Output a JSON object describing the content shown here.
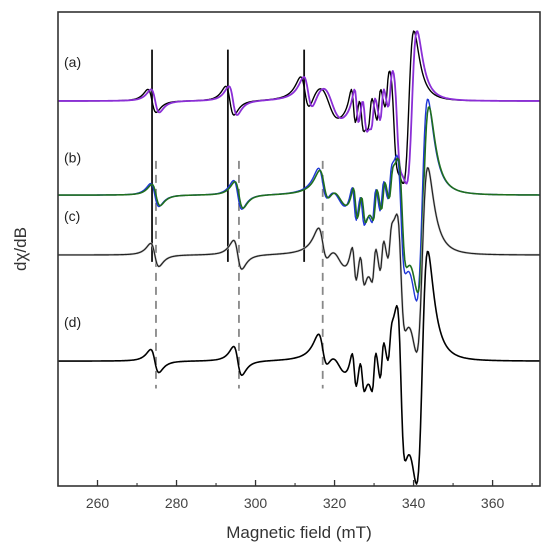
{
  "chart_data": {
    "type": "line",
    "title": "",
    "xlabel": "Magnetic field (mT)",
    "ylabel": "dχ/dB",
    "xlim": [
      250,
      372
    ],
    "x_ticks": [
      260,
      280,
      300,
      320,
      340,
      360
    ],
    "y_ticks_shown": false,
    "legend": "none",
    "trace_labels": [
      "(a)",
      "(b)",
      "(c)",
      "(d)"
    ],
    "traces": [
      {
        "label": "(a)",
        "baseline": 0.0,
        "series": [
          {
            "color": "#000000",
            "width": 1.4,
            "amp": 1.0,
            "field_shift": 0
          },
          {
            "color": "#8b2fd6",
            "width": 1.8,
            "amp": 1.0,
            "field_shift": 0.8
          }
        ],
        "features": [
          {
            "x": 273.8,
            "a": 0.08,
            "w": 1.8
          },
          {
            "x": 293.5,
            "a": 0.1,
            "w": 1.8
          },
          {
            "x": 312.5,
            "a": 0.12,
            "w": 2.0
          },
          {
            "x": 318.5,
            "a": 0.12,
            "w": 4.5
          },
          {
            "x": 324.8,
            "a": 0.14,
            "w": 1.0
          },
          {
            "x": 326.8,
            "a": 0.12,
            "w": 1.0
          },
          {
            "x": 329.0,
            "a": -0.1,
            "w": 0.9
          },
          {
            "x": 331.2,
            "a": -0.12,
            "w": 0.9
          },
          {
            "x": 333.3,
            "a": -0.1,
            "w": 0.9
          },
          {
            "x": 335.0,
            "a": 0.22,
            "w": 1.4
          },
          {
            "x": 338.8,
            "a": -0.5,
            "w": 2.2
          }
        ]
      },
      {
        "label": "(b)",
        "baseline": -0.55,
        "series": [
          {
            "color": "#1f36d6",
            "width": 1.4,
            "amp": 1.0,
            "field_shift": 0
          },
          {
            "color": "#1f6e1f",
            "width": 1.6,
            "amp": 0.92,
            "field_shift": 0.3
          }
        ],
        "features": [
          {
            "x": 274.5,
            "a": 0.08,
            "w": 1.8
          },
          {
            "x": 295.5,
            "a": 0.1,
            "w": 1.8
          },
          {
            "x": 317.0,
            "a": 0.12,
            "w": 2.0
          },
          {
            "x": 321.0,
            "a": 0.1,
            "w": 4.5
          },
          {
            "x": 325.0,
            "a": 0.14,
            "w": 1.0
          },
          {
            "x": 327.0,
            "a": 0.12,
            "w": 1.0
          },
          {
            "x": 330.0,
            "a": -0.12,
            "w": 0.9
          },
          {
            "x": 332.0,
            "a": -0.12,
            "w": 0.9
          },
          {
            "x": 334.0,
            "a": -0.1,
            "w": 0.9
          },
          {
            "x": 336.8,
            "a": 0.34,
            "w": 1.6
          },
          {
            "x": 342.2,
            "a": -0.68,
            "w": 2.4
          }
        ]
      },
      {
        "label": "(c)",
        "baseline": -0.9,
        "series": [
          {
            "color": "#c8c8c8",
            "width": 2.2,
            "amp": 1.0,
            "field_shift": 0
          },
          {
            "color": "#222222",
            "width": 1.2,
            "amp": 1.0,
            "field_shift": 0
          }
        ],
        "features": [
          {
            "x": 274.5,
            "a": 0.08,
            "w": 1.8
          },
          {
            "x": 295.5,
            "a": 0.1,
            "w": 1.8
          },
          {
            "x": 317.0,
            "a": 0.12,
            "w": 2.0
          },
          {
            "x": 321.0,
            "a": 0.1,
            "w": 4.5
          },
          {
            "x": 325.0,
            "a": 0.14,
            "w": 1.0
          },
          {
            "x": 327.0,
            "a": 0.12,
            "w": 1.0
          },
          {
            "x": 330.0,
            "a": -0.12,
            "w": 0.9
          },
          {
            "x": 332.0,
            "a": -0.12,
            "w": 0.9
          },
          {
            "x": 334.0,
            "a": -0.1,
            "w": 0.9
          },
          {
            "x": 336.8,
            "a": 0.34,
            "w": 1.6
          },
          {
            "x": 342.2,
            "a": -0.62,
            "w": 2.4
          }
        ]
      },
      {
        "label": "(d)",
        "baseline": -1.52,
        "series": [
          {
            "color": "#000000",
            "width": 1.6,
            "amp": 1.0,
            "field_shift": 0
          }
        ],
        "features": [
          {
            "x": 274.5,
            "a": 0.08,
            "w": 1.8
          },
          {
            "x": 295.5,
            "a": 0.1,
            "w": 1.8
          },
          {
            "x": 317.0,
            "a": 0.12,
            "w": 2.0
          },
          {
            "x": 321.0,
            "a": 0.1,
            "w": 4.5
          },
          {
            "x": 325.0,
            "a": 0.14,
            "w": 1.0
          },
          {
            "x": 327.0,
            "a": 0.12,
            "w": 1.0
          },
          {
            "x": 330.0,
            "a": -0.14,
            "w": 0.9
          },
          {
            "x": 332.0,
            "a": -0.14,
            "w": 0.9
          },
          {
            "x": 334.0,
            "a": -0.1,
            "w": 0.9
          },
          {
            "x": 336.8,
            "a": 0.46,
            "w": 1.6
          },
          {
            "x": 342.2,
            "a": -0.78,
            "w": 2.4
          }
        ]
      }
    ],
    "ylim": [
      -2.25,
      0.52
    ],
    "vertical_markers_solid": [
      273.8,
      293.0,
      312.3
    ],
    "vertical_markers_dashed": [
      274.8,
      295.8,
      317.0
    ],
    "solid_marker_y_range": [
      0.3,
      -0.94
    ],
    "dashed_marker_y_range": [
      -0.35,
      -1.68
    ],
    "colors": {
      "axis": "#333333",
      "solid_marker": "#111111",
      "dashed_marker": "#888888"
    }
  }
}
